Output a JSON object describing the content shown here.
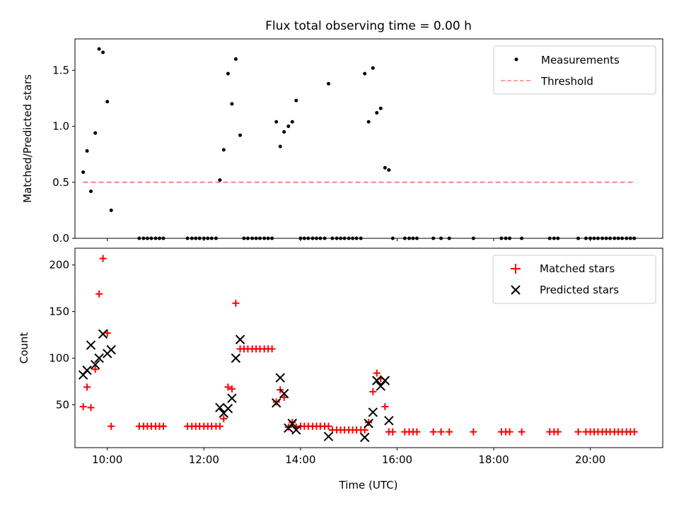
{
  "chart_data": [
    {
      "type": "scatter",
      "title": "Flux total observing time = 0.00 h",
      "xlabel": "",
      "ylabel": "Matched/Predicted stars",
      "xlim": [
        9.33,
        21.5
      ],
      "ylim": [
        0,
        1.78
      ],
      "yticks": [
        0.0,
        0.5,
        1.0,
        1.5
      ],
      "ytick_labels": [
        "0.0",
        "0.5",
        "1.0",
        "1.5"
      ],
      "xticks": [
        10,
        12,
        14,
        16,
        18,
        20
      ],
      "xtick_labels": [
        "",
        "",
        "",
        "",
        "",
        ""
      ],
      "legend_position": "top-right",
      "series": [
        {
          "name": "Measurements",
          "kind": "dot",
          "color": "#000000",
          "x": [
            9.5,
            9.58,
            9.66,
            9.75,
            9.83,
            9.91,
            10.0,
            10.08,
            10.66,
            10.75,
            10.83,
            10.91,
            11.0,
            11.08,
            11.16,
            11.66,
            11.75,
            11.83,
            11.91,
            12.0,
            12.08,
            12.16,
            12.25,
            12.33,
            12.41,
            12.5,
            12.58,
            12.66,
            12.75,
            12.83,
            12.91,
            13.0,
            13.08,
            13.16,
            13.25,
            13.33,
            13.41,
            13.5,
            13.58,
            13.66,
            13.75,
            13.83,
            13.91,
            14.0,
            14.08,
            14.16,
            14.25,
            14.33,
            14.41,
            14.5,
            14.58,
            14.66,
            14.75,
            14.83,
            14.91,
            15.0,
            15.08,
            15.16,
            15.25,
            15.33,
            15.41,
            15.5,
            15.58,
            15.66,
            15.75,
            15.83,
            15.91,
            16.16,
            16.25,
            16.33,
            16.41,
            16.75,
            16.91,
            17.08,
            17.58,
            18.16,
            18.25,
            18.33,
            18.58,
            19.16,
            19.25,
            19.33,
            19.75,
            19.91,
            20.0,
            20.08,
            20.16,
            20.25,
            20.33,
            20.41,
            20.5,
            20.58,
            20.66,
            20.75,
            20.83,
            20.91
          ],
          "y": [
            0.59,
            0.78,
            0.42,
            0.94,
            1.69,
            1.66,
            1.22,
            0.25,
            0,
            0,
            0,
            0,
            0,
            0,
            0,
            0,
            0,
            0,
            0,
            0,
            0,
            0,
            0,
            0.52,
            0.79,
            1.47,
            1.2,
            1.6,
            0.92,
            0,
            0,
            0,
            0,
            0,
            0,
            0,
            0,
            1.04,
            0.82,
            0.95,
            1.0,
            1.04,
            1.23,
            0,
            0,
            0,
            0,
            0,
            0,
            0,
            1.38,
            0,
            0,
            0,
            0,
            0,
            0,
            0,
            0,
            1.47,
            1.04,
            1.52,
            1.12,
            1.16,
            0.63,
            0.61,
            0,
            0,
            0,
            0,
            0,
            0,
            0,
            0,
            0,
            0,
            0,
            0,
            0,
            0,
            0,
            0,
            0,
            0,
            0,
            0,
            0,
            0,
            0,
            0,
            0,
            0,
            0,
            0,
            0,
            0
          ]
        },
        {
          "name": "Threshold",
          "kind": "dashed-line",
          "color": "#ff8080",
          "x": [
            9.5,
            20.91
          ],
          "y": [
            0.5,
            0.5
          ]
        }
      ]
    },
    {
      "type": "scatter",
      "title": "",
      "xlabel": "Time (UTC)",
      "ylabel": "Count",
      "xlim": [
        9.33,
        21.5
      ],
      "ylim": [
        4,
        218
      ],
      "yticks": [
        50,
        100,
        150,
        200
      ],
      "ytick_labels": [
        "50",
        "100",
        "150",
        "200"
      ],
      "xticks": [
        10,
        12,
        14,
        16,
        18,
        20
      ],
      "xtick_labels": [
        "10:00",
        "12:00",
        "14:00",
        "16:00",
        "18:00",
        "20:00"
      ],
      "legend_position": "top-right",
      "series": [
        {
          "name": "Matched stars",
          "kind": "plus",
          "color": "#ff0000",
          "x": [
            9.5,
            9.58,
            9.66,
            9.75,
            9.83,
            9.91,
            10.0,
            10.08,
            10.66,
            10.75,
            10.83,
            10.91,
            11.0,
            11.08,
            11.16,
            11.66,
            11.75,
            11.83,
            11.91,
            12.0,
            12.08,
            12.16,
            12.25,
            12.33,
            12.41,
            12.5,
            12.58,
            12.66,
            12.75,
            12.83,
            12.91,
            13.0,
            13.08,
            13.16,
            13.25,
            13.33,
            13.41,
            13.5,
            13.58,
            13.66,
            13.75,
            13.83,
            13.91,
            14.0,
            14.08,
            14.16,
            14.25,
            14.33,
            14.41,
            14.5,
            14.58,
            14.66,
            14.75,
            14.83,
            14.91,
            15.0,
            15.08,
            15.16,
            15.25,
            15.33,
            15.41,
            15.5,
            15.58,
            15.66,
            15.75,
            15.83,
            15.91,
            16.16,
            16.25,
            16.33,
            16.41,
            16.75,
            16.91,
            17.08,
            17.58,
            18.16,
            18.25,
            18.33,
            18.58,
            19.16,
            19.25,
            19.33,
            19.75,
            19.91,
            20.0,
            20.08,
            20.16,
            20.25,
            20.33,
            20.41,
            20.5,
            20.58,
            20.66,
            20.75,
            20.83,
            20.91
          ],
          "y": [
            48,
            69,
            47,
            88,
            169,
            207,
            127,
            27,
            27,
            27,
            27,
            27,
            27,
            27,
            27,
            27,
            27,
            27,
            27,
            27,
            27,
            27,
            27,
            27,
            35,
            69,
            67,
            159,
            110,
            110,
            110,
            110,
            110,
            110,
            110,
            110,
            110,
            53,
            66,
            58,
            26,
            31,
            26,
            27,
            27,
            27,
            27,
            27,
            27,
            27,
            27,
            23,
            23,
            23,
            23,
            23,
            23,
            23,
            23,
            23,
            31,
            64,
            84,
            78,
            48,
            21,
            21,
            21,
            21,
            21,
            21,
            21,
            21,
            21,
            21,
            21,
            21,
            21,
            21,
            21,
            21,
            21,
            21,
            21,
            21,
            21,
            21,
            21,
            21,
            21,
            21,
            21,
            21,
            21,
            21,
            21
          ]
        },
        {
          "name": "Predicted stars",
          "kind": "x",
          "color": "#000000",
          "x": [
            9.5,
            9.58,
            9.66,
            9.75,
            9.83,
            9.91,
            10.0,
            10.08,
            12.33,
            12.41,
            12.5,
            12.58,
            12.66,
            12.75,
            13.5,
            13.58,
            13.66,
            13.75,
            13.83,
            13.91,
            14.58,
            15.33,
            15.41,
            15.5,
            15.58,
            15.66,
            15.75,
            15.83
          ],
          "y": [
            82,
            87,
            114,
            93,
            100,
            126,
            105,
            109,
            47,
            41,
            46,
            57,
            100,
            120,
            52,
            79,
            62,
            25,
            30,
            23,
            16,
            15,
            30,
            42,
            76,
            70,
            76,
            33
          ]
        }
      ]
    }
  ]
}
